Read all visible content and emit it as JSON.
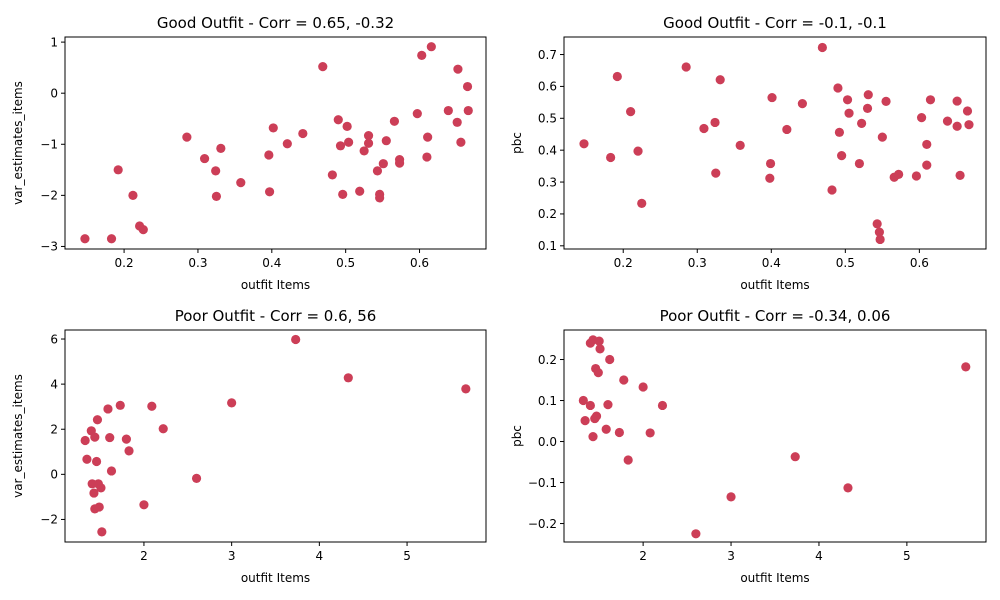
{
  "chart_data": [
    {
      "type": "scatter",
      "title": "Good Outfit - Corr = 0.65, -0.32",
      "xlabel": "outfit Items",
      "ylabel": "var_estimates_items",
      "xlim": [
        0.12,
        0.69
      ],
      "ylim": [
        -3.05,
        1.1
      ],
      "xticks": [
        0.2,
        0.3,
        0.4,
        0.5,
        0.6
      ],
      "yticks": [
        -3,
        -2,
        -1,
        0,
        1
      ],
      "color": "#cc3e57",
      "points": [
        [
          0.147,
          -2.85
        ],
        [
          0.183,
          -2.85
        ],
        [
          0.192,
          -1.5
        ],
        [
          0.212,
          -2.0
        ],
        [
          0.221,
          -2.6
        ],
        [
          0.226,
          -2.67
        ],
        [
          0.285,
          -0.86
        ],
        [
          0.309,
          -1.28
        ],
        [
          0.324,
          -1.52
        ],
        [
          0.325,
          -2.02
        ],
        [
          0.331,
          -1.08
        ],
        [
          0.358,
          -1.75
        ],
        [
          0.396,
          -1.21
        ],
        [
          0.397,
          -1.93
        ],
        [
          0.402,
          -0.68
        ],
        [
          0.421,
          -0.99
        ],
        [
          0.442,
          -0.79
        ],
        [
          0.469,
          0.52
        ],
        [
          0.482,
          -1.6
        ],
        [
          0.49,
          -0.52
        ],
        [
          0.493,
          -1.03
        ],
        [
          0.496,
          -1.98
        ],
        [
          0.502,
          -0.65
        ],
        [
          0.504,
          -0.96
        ],
        [
          0.519,
          -1.92
        ],
        [
          0.525,
          -1.13
        ],
        [
          0.531,
          -0.83
        ],
        [
          0.531,
          -0.98
        ],
        [
          0.543,
          -1.52
        ],
        [
          0.546,
          -1.98
        ],
        [
          0.546,
          -2.05
        ],
        [
          0.551,
          -1.38
        ],
        [
          0.555,
          -0.93
        ],
        [
          0.566,
          -0.55
        ],
        [
          0.573,
          -1.3
        ],
        [
          0.573,
          -1.37
        ],
        [
          0.597,
          -0.4
        ],
        [
          0.603,
          0.74
        ],
        [
          0.61,
          -1.25
        ],
        [
          0.611,
          -0.86
        ],
        [
          0.616,
          0.91
        ],
        [
          0.639,
          -0.34
        ],
        [
          0.651,
          -0.57
        ],
        [
          0.652,
          0.47
        ],
        [
          0.656,
          -0.96
        ],
        [
          0.665,
          0.13
        ],
        [
          0.666,
          -0.34
        ]
      ]
    },
    {
      "type": "scatter",
      "title": "Good Outfit - Corr = -0.1, -0.1",
      "xlabel": "outfit Items",
      "ylabel": "pbc",
      "xlim": [
        0.12,
        0.69
      ],
      "ylim": [
        0.09,
        0.755
      ],
      "xticks": [
        0.2,
        0.3,
        0.4,
        0.5,
        0.6
      ],
      "yticks": [
        0.1,
        0.2,
        0.3,
        0.4,
        0.5,
        0.6,
        0.7
      ],
      "color": "#cc3e57",
      "points": [
        [
          0.147,
          0.42
        ],
        [
          0.183,
          0.377
        ],
        [
          0.192,
          0.631
        ],
        [
          0.21,
          0.521
        ],
        [
          0.22,
          0.397
        ],
        [
          0.225,
          0.233
        ],
        [
          0.285,
          0.661
        ],
        [
          0.309,
          0.468
        ],
        [
          0.324,
          0.487
        ],
        [
          0.325,
          0.328
        ],
        [
          0.331,
          0.621
        ],
        [
          0.358,
          0.415
        ],
        [
          0.398,
          0.312
        ],
        [
          0.399,
          0.358
        ],
        [
          0.401,
          0.565
        ],
        [
          0.421,
          0.465
        ],
        [
          0.442,
          0.546
        ],
        [
          0.469,
          0.722
        ],
        [
          0.482,
          0.275
        ],
        [
          0.49,
          0.595
        ],
        [
          0.492,
          0.456
        ],
        [
          0.495,
          0.383
        ],
        [
          0.503,
          0.558
        ],
        [
          0.505,
          0.516
        ],
        [
          0.519,
          0.358
        ],
        [
          0.522,
          0.484
        ],
        [
          0.53,
          0.531
        ],
        [
          0.531,
          0.574
        ],
        [
          0.543,
          0.169
        ],
        [
          0.546,
          0.143
        ],
        [
          0.547,
          0.12
        ],
        [
          0.55,
          0.441
        ],
        [
          0.555,
          0.553
        ],
        [
          0.566,
          0.315
        ],
        [
          0.572,
          0.324
        ],
        [
          0.596,
          0.319
        ],
        [
          0.603,
          0.502
        ],
        [
          0.61,
          0.418
        ],
        [
          0.61,
          0.353
        ],
        [
          0.615,
          0.558
        ],
        [
          0.638,
          0.491
        ],
        [
          0.651,
          0.554
        ],
        [
          0.651,
          0.475
        ],
        [
          0.655,
          0.321
        ],
        [
          0.665,
          0.523
        ],
        [
          0.667,
          0.48
        ]
      ]
    },
    {
      "type": "scatter",
      "title": "Poor Outfit - Corr = 0.6, 56",
      "xlabel": "outfit Items",
      "ylabel": "var_estimates_items",
      "xlim": [
        1.1,
        5.9
      ],
      "ylim": [
        -3.0,
        6.4
      ],
      "xticks": [
        2,
        3,
        4,
        5
      ],
      "yticks": [
        -2,
        0,
        2,
        4,
        6
      ],
      "color": "#cc3e57",
      "points": [
        [
          1.33,
          1.5
        ],
        [
          1.35,
          0.67
        ],
        [
          1.4,
          1.93
        ],
        [
          1.41,
          -0.42
        ],
        [
          1.43,
          -0.83
        ],
        [
          1.44,
          1.65
        ],
        [
          1.44,
          -1.53
        ],
        [
          1.46,
          0.57
        ],
        [
          1.47,
          2.42
        ],
        [
          1.48,
          -0.42
        ],
        [
          1.49,
          -1.45
        ],
        [
          1.51,
          -0.6
        ],
        [
          1.52,
          -2.55
        ],
        [
          1.59,
          2.9
        ],
        [
          1.61,
          1.63
        ],
        [
          1.63,
          0.15
        ],
        [
          1.73,
          3.06
        ],
        [
          1.8,
          1.56
        ],
        [
          1.83,
          1.04
        ],
        [
          2.0,
          -1.35
        ],
        [
          2.09,
          3.02
        ],
        [
          2.22,
          2.02
        ],
        [
          2.6,
          -0.18
        ],
        [
          3.0,
          3.17
        ],
        [
          3.73,
          5.98
        ],
        [
          4.33,
          4.28
        ],
        [
          5.67,
          3.79
        ]
      ]
    },
    {
      "type": "scatter",
      "title": "Poor Outfit - Corr = -0.34, 0.06",
      "xlabel": "outfit Items",
      "ylabel": "pbc",
      "xlim": [
        1.1,
        5.9
      ],
      "ylim": [
        -0.245,
        0.272
      ],
      "xticks": [
        2,
        3,
        4,
        5
      ],
      "yticks": [
        -0.2,
        -0.1,
        0.0,
        0.1,
        0.2
      ],
      "color": "#cc3e57",
      "points": [
        [
          1.32,
          0.1
        ],
        [
          1.34,
          0.051
        ],
        [
          1.4,
          0.088
        ],
        [
          1.4,
          0.24
        ],
        [
          1.43,
          0.248
        ],
        [
          1.43,
          0.012
        ],
        [
          1.45,
          0.056
        ],
        [
          1.46,
          0.178
        ],
        [
          1.47,
          0.062
        ],
        [
          1.49,
          0.168
        ],
        [
          1.5,
          0.245
        ],
        [
          1.51,
          0.226
        ],
        [
          1.58,
          0.03
        ],
        [
          1.6,
          0.09
        ],
        [
          1.62,
          0.2
        ],
        [
          1.73,
          0.022
        ],
        [
          1.78,
          0.15
        ],
        [
          1.83,
          -0.045
        ],
        [
          2.0,
          0.133
        ],
        [
          2.08,
          0.021
        ],
        [
          2.22,
          0.088
        ],
        [
          2.6,
          -0.225
        ],
        [
          3.0,
          -0.135
        ],
        [
          3.73,
          -0.037
        ],
        [
          4.33,
          -0.113
        ],
        [
          5.67,
          0.182
        ]
      ]
    }
  ]
}
